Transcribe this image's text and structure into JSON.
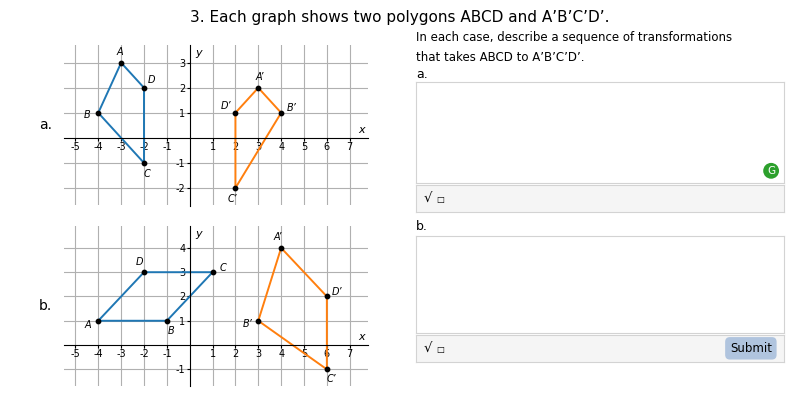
{
  "title": "3. Each graph shows two polygons ABCD and A’B’C’D’.",
  "annotations": {
    "instructions": [
      "In each case, describe a sequence of transformations",
      "that takes ABCD to A’B’C’D’."
    ],
    "answer_boxes": [
      {
        "label": "a.",
        "toolbar": [
          "√",
          "□"
        ],
        "badge": "G"
      },
      {
        "label": "b.",
        "toolbar": [
          "√",
          "□"
        ],
        "button": "Submit"
      }
    ]
  },
  "chart_data": [
    {
      "type": "polygon",
      "title": "a.",
      "xlabel": "x",
      "ylabel": "y",
      "series": [
        {
          "x": [
            -3,
            -4,
            -2,
            -2
          ],
          "y": [
            3,
            1,
            -1,
            2
          ],
          "point_labels": [
            "A",
            "B",
            "C",
            "D"
          ]
        },
        {
          "x": [
            3,
            4,
            2,
            2
          ],
          "y": [
            2,
            1,
            -2,
            1
          ],
          "point_labels": [
            "A’",
            "B’",
            "C’",
            "D’"
          ]
        }
      ],
      "xlim": [
        -5.5,
        7.8
      ],
      "ylim": [
        -2.7,
        3.7
      ],
      "xticks": [
        -5,
        -4,
        -3,
        -2,
        -1,
        1,
        2,
        3,
        4,
        5,
        6,
        7
      ],
      "yticks": [
        -2,
        -1,
        1,
        2,
        3
      ],
      "grid": true
    },
    {
      "type": "polygon",
      "title": "b.",
      "xlabel": "x",
      "ylabel": "y",
      "series": [
        {
          "x": [
            -4,
            -1,
            1,
            -2
          ],
          "y": [
            1,
            1,
            3,
            3
          ],
          "point_labels": [
            "A",
            "B",
            "C",
            "D"
          ]
        },
        {
          "x": [
            4,
            3,
            6,
            6
          ],
          "y": [
            4,
            1,
            -1,
            2
          ],
          "point_labels": [
            "A’",
            "B’",
            "C’",
            "D’"
          ]
        }
      ],
      "xlim": [
        -5.5,
        7.8
      ],
      "ylim": [
        -1.7,
        4.9
      ],
      "xticks": [
        -5,
        -4,
        -3,
        -2,
        -1,
        1,
        2,
        3,
        4,
        5,
        6,
        7
      ],
      "yticks": [
        -1,
        1,
        2,
        3,
        4
      ],
      "grid": true
    }
  ]
}
